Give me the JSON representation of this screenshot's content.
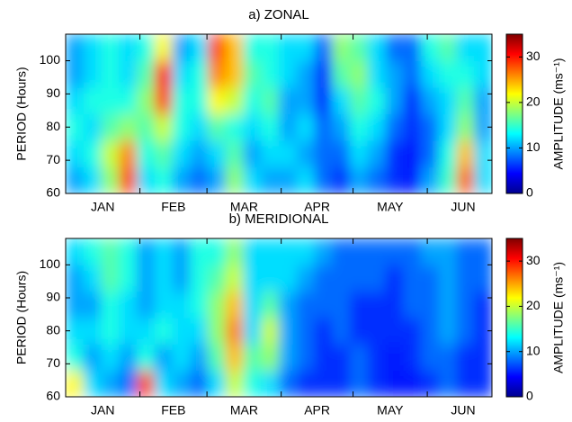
{
  "chart_data": [
    {
      "type": "heatmap",
      "title": "a) ZONAL",
      "ylabel": "PERIOD (Hours)",
      "colorbar_label": "AMPLITUDE (ms⁻¹)",
      "colormap": "jet",
      "clim": [
        0,
        35
      ],
      "cticks": [
        0,
        10,
        20,
        30
      ],
      "ylim": [
        60,
        108
      ],
      "yticks": [
        60,
        70,
        80,
        90,
        100
      ],
      "xlim": [
        0,
        178
      ],
      "xticks": [
        {
          "value": 15.5,
          "label": "JAN"
        },
        {
          "value": 45,
          "label": "FEB"
        },
        {
          "value": 74.5,
          "label": "MAR"
        },
        {
          "value": 105,
          "label": "APR"
        },
        {
          "value": 135.5,
          "label": "MAY"
        },
        {
          "value": 166,
          "label": "JUN"
        }
      ],
      "xminor": [
        31,
        59,
        90,
        120,
        151
      ],
      "z": [
        [
          10,
          12,
          18,
          28,
          12,
          14,
          10,
          8,
          10,
          18,
          12,
          10,
          10,
          12,
          8,
          6,
          10,
          8,
          6,
          5,
          10,
          15,
          27,
          12
        ],
        [
          12,
          14,
          20,
          26,
          14,
          16,
          12,
          10,
          12,
          16,
          10,
          12,
          12,
          10,
          8,
          8,
          12,
          10,
          6,
          5,
          8,
          14,
          24,
          12
        ],
        [
          14,
          12,
          16,
          18,
          16,
          20,
          14,
          12,
          16,
          14,
          12,
          14,
          10,
          12,
          8,
          10,
          14,
          12,
          8,
          6,
          8,
          12,
          18,
          10
        ],
        [
          12,
          14,
          14,
          14,
          18,
          28,
          14,
          14,
          22,
          20,
          14,
          16,
          10,
          10,
          6,
          12,
          16,
          14,
          10,
          6,
          10,
          12,
          16,
          10
        ],
        [
          10,
          12,
          14,
          12,
          16,
          30,
          12,
          14,
          26,
          24,
          16,
          14,
          12,
          10,
          6,
          16,
          18,
          12,
          10,
          8,
          12,
          14,
          14,
          12
        ],
        [
          10,
          12,
          14,
          12,
          14,
          22,
          10,
          12,
          28,
          24,
          14,
          14,
          12,
          12,
          8,
          18,
          16,
          12,
          8,
          8,
          14,
          16,
          12,
          12
        ]
      ]
    },
    {
      "type": "heatmap",
      "title": "b) MERIDIONAL",
      "ylabel": "PERIOD (Hours)",
      "colorbar_label": "AMPLITUDE (ms⁻¹)",
      "colormap": "jet",
      "clim": [
        0,
        35
      ],
      "cticks": [
        0,
        10,
        20,
        30
      ],
      "ylim": [
        60,
        108
      ],
      "yticks": [
        60,
        70,
        80,
        90,
        100
      ],
      "xlim": [
        0,
        178
      ],
      "xticks": [
        {
          "value": 15.5,
          "label": "JAN"
        },
        {
          "value": 45,
          "label": "FEB"
        },
        {
          "value": 74.5,
          "label": "MAR"
        },
        {
          "value": 105,
          "label": "APR"
        },
        {
          "value": 135.5,
          "label": "MAY"
        },
        {
          "value": 166,
          "label": "JUN"
        }
      ],
      "xminor": [
        31,
        59,
        90,
        120,
        151
      ],
      "z": [
        [
          22,
          12,
          10,
          8,
          28,
          12,
          10,
          8,
          12,
          20,
          14,
          12,
          8,
          6,
          6,
          6,
          8,
          6,
          5,
          5,
          6,
          8,
          6,
          6
        ],
        [
          14,
          10,
          12,
          10,
          14,
          10,
          12,
          10,
          16,
          24,
          16,
          18,
          10,
          8,
          6,
          6,
          8,
          6,
          5,
          6,
          8,
          8,
          6,
          6
        ],
        [
          12,
          12,
          14,
          12,
          12,
          14,
          12,
          12,
          18,
          26,
          12,
          20,
          10,
          8,
          6,
          8,
          6,
          6,
          6,
          6,
          8,
          10,
          8,
          6
        ],
        [
          10,
          10,
          14,
          12,
          10,
          12,
          12,
          14,
          18,
          24,
          12,
          16,
          10,
          8,
          8,
          8,
          6,
          6,
          6,
          8,
          8,
          10,
          8,
          6
        ],
        [
          10,
          12,
          16,
          14,
          10,
          12,
          10,
          14,
          16,
          20,
          12,
          12,
          12,
          10,
          8,
          8,
          8,
          8,
          6,
          8,
          8,
          10,
          8,
          8
        ],
        [
          12,
          14,
          16,
          14,
          10,
          12,
          10,
          14,
          14,
          18,
          12,
          12,
          12,
          12,
          10,
          8,
          8,
          8,
          8,
          8,
          10,
          10,
          8,
          8
        ]
      ]
    }
  ]
}
